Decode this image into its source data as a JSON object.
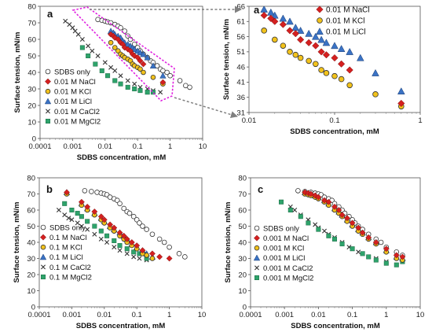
{
  "chart_data": [
    {
      "type": "scatter",
      "panel_label": "a",
      "xlabel": "SDBS concentration, mM",
      "ylabel": "Surface tension, mN/m",
      "xscale": "log",
      "xlim": [
        0.0001,
        10
      ],
      "ylim": [
        0,
        80
      ],
      "xticks": [
        "0.0001",
        "0.001",
        "0.01",
        "0.1",
        "1",
        "10"
      ],
      "yticks": [
        "0",
        "10",
        "20",
        "30",
        "40",
        "50",
        "60",
        "70",
        "80"
      ],
      "grid": false,
      "legend_position": "bottom-left",
      "series": [
        {
          "name": "SDBS only",
          "marker": "circle-open",
          "color": "#ffffff",
          "x": [
            0.006,
            0.008,
            0.01,
            0.012,
            0.015,
            0.02,
            0.025,
            0.03,
            0.04,
            0.05,
            0.06,
            0.08,
            0.1,
            0.12,
            0.15,
            0.2,
            0.25,
            0.3,
            0.4,
            0.5,
            0.6,
            0.8,
            1,
            2,
            3,
            4
          ],
          "y": [
            72,
            71.5,
            71,
            70.5,
            70,
            69,
            68,
            67,
            65,
            62,
            60,
            57,
            55,
            53,
            51,
            49,
            47,
            46,
            44,
            42,
            41,
            40,
            38,
            35,
            32,
            31
          ]
        },
        {
          "name": "0.01 M NaCl",
          "marker": "diamond",
          "color": "#d42020",
          "x": [
            0.015,
            0.018,
            0.02,
            0.025,
            0.03,
            0.035,
            0.04,
            0.05,
            0.06,
            0.07,
            0.08,
            0.1,
            0.12,
            0.15,
            0.6
          ],
          "y": [
            63,
            62,
            61,
            60,
            58,
            57,
            55,
            54,
            53,
            51,
            50,
            49,
            47,
            45,
            34
          ]
        },
        {
          "name": "0.01 M KCl",
          "marker": "circle",
          "color": "#f2c21b",
          "x": [
            0.015,
            0.02,
            0.025,
            0.03,
            0.035,
            0.04,
            0.05,
            0.06,
            0.07,
            0.08,
            0.1,
            0.12,
            0.15,
            0.3,
            0.6
          ],
          "y": [
            58,
            55,
            53,
            51,
            50,
            49,
            48,
            47,
            45,
            44,
            43,
            42,
            40,
            37,
            33
          ]
        },
        {
          "name": "0.01 M LiCl",
          "marker": "triangle",
          "color": "#3a72c4",
          "x": [
            0.015,
            0.018,
            0.02,
            0.025,
            0.03,
            0.035,
            0.04,
            0.05,
            0.06,
            0.07,
            0.08,
            0.1,
            0.12,
            0.15,
            0.2,
            0.3,
            0.6
          ],
          "y": [
            65,
            64,
            63,
            62,
            61,
            59,
            58,
            57,
            56,
            55,
            54,
            53,
            52,
            51,
            49,
            44,
            38
          ]
        },
        {
          "name": "0.01 M CaCl2",
          "marker": "x",
          "color": "#333333",
          "x": [
            0.0006,
            0.0008,
            0.001,
            0.0012,
            0.0015,
            0.002,
            0.003,
            0.004,
            0.006,
            0.01,
            0.015,
            0.02,
            0.03,
            0.05,
            0.08,
            0.12,
            0.2,
            0.3,
            0.5
          ],
          "y": [
            71,
            69,
            67,
            65,
            63,
            60,
            56,
            53,
            50,
            46,
            43,
            41,
            38,
            35,
            33,
            31,
            30,
            29,
            28
          ]
        },
        {
          "name": "0.01 M MgCl2",
          "marker": "square",
          "color": "#2ea36b",
          "x": [
            0.002,
            0.003,
            0.005,
            0.008,
            0.012,
            0.02,
            0.03,
            0.05,
            0.08,
            0.12,
            0.2,
            0.3
          ],
          "y": [
            55,
            50,
            45,
            41,
            38,
            35,
            33,
            31,
            30,
            29,
            28,
            28
          ]
        }
      ]
    },
    {
      "type": "scatter",
      "panel_label": "a",
      "xlabel": "SDBS concentration, mM",
      "ylabel": "Surface tension, mN/m",
      "xscale": "log",
      "xlim": [
        0.01,
        1
      ],
      "ylim": [
        31,
        66
      ],
      "xticks": [
        "0.01",
        "0.1",
        "1"
      ],
      "yticks": [
        "31",
        "36",
        "41",
        "46",
        "51",
        "56",
        "61",
        "66"
      ],
      "grid": false,
      "legend_position": "top-right",
      "series": [
        {
          "name": "0.01 M NaCl",
          "marker": "diamond",
          "color": "#d42020",
          "x": [
            0.015,
            0.018,
            0.02,
            0.025,
            0.03,
            0.035,
            0.04,
            0.05,
            0.06,
            0.07,
            0.08,
            0.1,
            0.12,
            0.15,
            0.6
          ],
          "y": [
            63,
            62,
            61,
            60,
            58,
            57,
            55,
            54,
            53,
            51,
            50,
            49,
            47,
            45,
            34
          ]
        },
        {
          "name": "0.01 M KCl",
          "marker": "circle",
          "color": "#f2c21b",
          "x": [
            0.015,
            0.02,
            0.025,
            0.03,
            0.035,
            0.04,
            0.05,
            0.06,
            0.07,
            0.08,
            0.1,
            0.12,
            0.15,
            0.3,
            0.6
          ],
          "y": [
            58,
            55,
            53,
            51,
            50,
            49,
            48,
            47,
            45,
            44,
            43,
            42,
            40,
            37,
            33
          ]
        },
        {
          "name": "0.01 M LiCl",
          "marker": "triangle",
          "color": "#3a72c4",
          "x": [
            0.015,
            0.018,
            0.02,
            0.025,
            0.03,
            0.035,
            0.04,
            0.05,
            0.06,
            0.07,
            0.08,
            0.1,
            0.12,
            0.15,
            0.2,
            0.3,
            0.6
          ],
          "y": [
            65,
            64,
            63,
            62,
            61,
            59,
            58,
            57,
            56,
            55,
            54,
            53,
            52,
            51,
            49,
            44,
            38
          ]
        }
      ]
    },
    {
      "type": "scatter",
      "panel_label": "b",
      "xlabel": "SDBS concentration, mM",
      "ylabel": "Surface tension, mN/m",
      "xscale": "log",
      "xlim": [
        0.0001,
        10
      ],
      "ylim": [
        0,
        80
      ],
      "xticks": [
        "0.0001",
        "0.001",
        "0.01",
        "0.1",
        "1",
        "10"
      ],
      "yticks": [
        "0",
        "10",
        "20",
        "30",
        "40",
        "50",
        "60",
        "70",
        "80"
      ],
      "grid": false,
      "legend_position": "bottom-left",
      "series": [
        {
          "name": "SDBS only",
          "marker": "circle-open",
          "color": "#ffffff",
          "x": [
            0.0025,
            0.004,
            0.006,
            0.008,
            0.01,
            0.012,
            0.015,
            0.02,
            0.025,
            0.03,
            0.04,
            0.05,
            0.06,
            0.08,
            0.1,
            0.12,
            0.15,
            0.2,
            0.3,
            0.5,
            0.7,
            1,
            2,
            3
          ],
          "y": [
            72,
            71.5,
            71,
            70.5,
            70,
            69.5,
            68,
            67,
            66,
            64,
            61,
            59,
            58,
            56,
            54,
            52,
            50,
            48,
            45,
            42,
            40,
            37,
            33,
            31
          ]
        },
        {
          "name": "0.1 M NaCl",
          "marker": "diamond",
          "color": "#d42020",
          "x": [
            0.0007,
            0.002,
            0.003,
            0.005,
            0.008,
            0.01,
            0.015,
            0.02,
            0.03,
            0.04,
            0.05,
            0.07,
            0.1,
            0.15,
            0.3,
            0.5,
            1
          ],
          "y": [
            71,
            65,
            62,
            59,
            56,
            54,
            51,
            49,
            46,
            44,
            42,
            40,
            38,
            35,
            33,
            31,
            30
          ]
        },
        {
          "name": "0.1 M KCl",
          "marker": "circle",
          "color": "#f2c21b",
          "x": [
            0.0007,
            0.002,
            0.003,
            0.005,
            0.008,
            0.01,
            0.015,
            0.02,
            0.03,
            0.04,
            0.05,
            0.07,
            0.1,
            0.15,
            0.2,
            0.3
          ],
          "y": [
            70,
            63,
            60,
            57,
            54,
            52,
            49,
            47,
            44,
            42,
            40,
            38,
            36,
            33,
            32,
            30
          ]
        },
        {
          "name": "0.1 M LiCl",
          "marker": "triangle",
          "color": "#3a72c4",
          "x": [
            0.0007,
            0.002,
            0.003,
            0.005,
            0.008,
            0.01,
            0.015,
            0.02,
            0.03,
            0.04,
            0.05,
            0.07,
            0.1,
            0.15,
            0.2,
            0.3
          ],
          "y": [
            71,
            64,
            61,
            58,
            55,
            53,
            50,
            48,
            46,
            44,
            42,
            39,
            37,
            35,
            33,
            31
          ]
        },
        {
          "name": "0.1 M CaCl2",
          "marker": "x",
          "color": "#333333",
          "x": [
            0.0004,
            0.0006,
            0.0008,
            0.001,
            0.0015,
            0.002,
            0.003,
            0.005,
            0.008,
            0.012,
            0.02,
            0.03,
            0.05,
            0.08,
            0.12,
            0.2
          ],
          "y": [
            60,
            57,
            55,
            54,
            52,
            50,
            48,
            45,
            42,
            40,
            37,
            35,
            33,
            31,
            30,
            29
          ]
        },
        {
          "name": "0.1 M MgCl2",
          "marker": "square",
          "color": "#2ea36b",
          "x": [
            0.0006,
            0.001,
            0.0015,
            0.002,
            0.003,
            0.005,
            0.008,
            0.012,
            0.02,
            0.03,
            0.05,
            0.08,
            0.12,
            0.2
          ],
          "y": [
            64,
            60,
            58,
            56,
            53,
            50,
            47,
            44,
            41,
            38,
            36,
            34,
            33,
            30
          ]
        }
      ]
    },
    {
      "type": "scatter",
      "panel_label": "c",
      "xlabel": "SDBS concentration, mM",
      "ylabel": "Surface tension, mN/m",
      "xscale": "log",
      "xlim": [
        0.0001,
        10
      ],
      "ylim": [
        0,
        80
      ],
      "xticks": [
        "0.0001",
        "0.001",
        "0.01",
        "0.1",
        "1",
        "10"
      ],
      "yticks": [
        "0",
        "10",
        "20",
        "30",
        "40",
        "50",
        "60",
        "70",
        "80"
      ],
      "grid": false,
      "legend_position": "bottom-left",
      "series": [
        {
          "name": "SDBS only",
          "marker": "circle-open",
          "color": "#ffffff",
          "x": [
            0.0025,
            0.004,
            0.006,
            0.008,
            0.01,
            0.012,
            0.015,
            0.02,
            0.025,
            0.03,
            0.04,
            0.05,
            0.06,
            0.08,
            0.1,
            0.12,
            0.15,
            0.2,
            0.3,
            0.5,
            0.7,
            1,
            2,
            3
          ],
          "y": [
            72,
            71.5,
            71,
            70.5,
            70,
            69.5,
            68,
            67,
            66,
            64,
            62,
            60,
            58,
            56,
            54,
            52,
            50,
            48,
            45,
            42,
            40,
            37,
            34,
            32
          ]
        },
        {
          "name": "0.001 M NaCl",
          "marker": "diamond",
          "color": "#d42020",
          "x": [
            0.004,
            0.005,
            0.006,
            0.008,
            0.01,
            0.015,
            0.02,
            0.03,
            0.04,
            0.05,
            0.07,
            0.1,
            0.15,
            0.2,
            0.3,
            0.5,
            1,
            2,
            3
          ],
          "y": [
            71,
            70.5,
            70,
            69,
            68,
            66,
            65,
            62,
            60,
            57,
            55,
            52,
            49,
            46,
            43,
            40,
            36,
            32,
            31
          ]
        },
        {
          "name": "0.001 M KCl",
          "marker": "circle",
          "color": "#f2c21b",
          "x": [
            0.004,
            0.005,
            0.006,
            0.008,
            0.01,
            0.015,
            0.02,
            0.03,
            0.04,
            0.05,
            0.07,
            0.1,
            0.15,
            0.2,
            0.3,
            0.5,
            1,
            2,
            3
          ],
          "y": [
            70,
            69.5,
            69,
            68,
            67,
            65,
            63,
            60,
            58,
            56,
            53,
            50,
            47,
            45,
            42,
            39,
            34,
            30,
            29
          ]
        },
        {
          "name": "0.001 M LiCl",
          "marker": "triangle",
          "color": "#3a72c4",
          "x": [
            0.004,
            0.005,
            0.006,
            0.008,
            0.01,
            0.015,
            0.02,
            0.03,
            0.04,
            0.05,
            0.07,
            0.1,
            0.15,
            0.2,
            0.3,
            0.5,
            1,
            2,
            3
          ],
          "y": [
            71,
            70.5,
            70,
            69,
            68,
            66,
            64,
            61,
            59,
            57,
            54,
            51,
            48,
            46,
            43,
            40,
            35,
            31,
            30
          ]
        },
        {
          "name": "0.001 M CaCl2",
          "marker": "x",
          "color": "#333333",
          "x": [
            0.0015,
            0.002,
            0.003,
            0.005,
            0.008,
            0.01,
            0.015,
            0.02,
            0.03,
            0.05,
            0.08,
            0.1,
            0.15,
            0.2,
            0.3,
            0.5,
            1
          ],
          "y": [
            62,
            60,
            57,
            54,
            51,
            49,
            47,
            45,
            43,
            40,
            37,
            36,
            34,
            33,
            31,
            30,
            28
          ]
        },
        {
          "name": "0.001 M MgCl2",
          "marker": "square",
          "color": "#2ea36b",
          "x": [
            0.0008,
            0.0015,
            0.003,
            0.005,
            0.01,
            0.02,
            0.03,
            0.05,
            0.1,
            0.2,
            0.3,
            0.5,
            1,
            2,
            3
          ],
          "y": [
            65,
            60,
            56,
            52,
            48,
            44,
            42,
            39,
            36,
            33,
            31,
            29,
            27,
            26,
            28
          ]
        }
      ]
    }
  ]
}
